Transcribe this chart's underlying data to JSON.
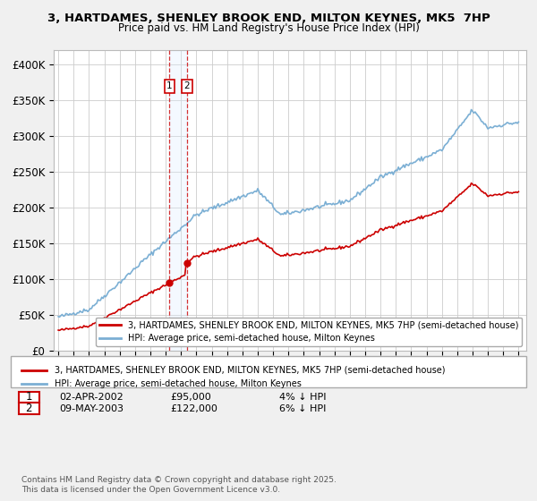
{
  "title": "3, HARTDAMES, SHENLEY BROOK END, MILTON KEYNES, MK5  7HP",
  "subtitle": "Price paid vs. HM Land Registry's House Price Index (HPI)",
  "legend_line1": "3, HARTDAMES, SHENLEY BROOK END, MILTON KEYNES, MK5 7HP (semi-detached house)",
  "legend_line2": "HPI: Average price, semi-detached house, Milton Keynes",
  "footnote": "Contains HM Land Registry data © Crown copyright and database right 2025.\nThis data is licensed under the Open Government Licence v3.0.",
  "table_rows": [
    {
      "num": "1",
      "date": "02-APR-2002",
      "price": "£95,000",
      "hpi": "4% ↓ HPI",
      "year": 2002.25
    },
    {
      "num": "2",
      "date": "09-MAY-2003",
      "price": "£122,000",
      "hpi": "6% ↓ HPI",
      "year": 2003.37
    }
  ],
  "ylim": [
    0,
    420000
  ],
  "yticks": [
    0,
    50000,
    100000,
    150000,
    200000,
    250000,
    300000,
    350000,
    400000
  ],
  "ytick_labels": [
    "£0",
    "£50K",
    "£100K",
    "£150K",
    "£200K",
    "£250K",
    "£300K",
    "£350K",
    "£400K"
  ],
  "xlim_start": 1994.7,
  "xlim_end": 2025.5,
  "xticks": [
    1995,
    1996,
    1997,
    1998,
    1999,
    2000,
    2001,
    2002,
    2003,
    2004,
    2005,
    2006,
    2007,
    2008,
    2009,
    2010,
    2011,
    2012,
    2013,
    2014,
    2015,
    2016,
    2017,
    2018,
    2019,
    2020,
    2021,
    2022,
    2023,
    2024,
    2025
  ],
  "red_color": "#cc0000",
  "blue_color": "#7bafd4",
  "background_color": "#f0f0f0",
  "plot_bg": "#ffffff",
  "grid_color": "#cccccc",
  "purchase1_year": 2002.25,
  "purchase1_price": 95000,
  "purchase2_year": 2003.37,
  "purchase2_price": 122000,
  "shade_color": "#ddeeff"
}
